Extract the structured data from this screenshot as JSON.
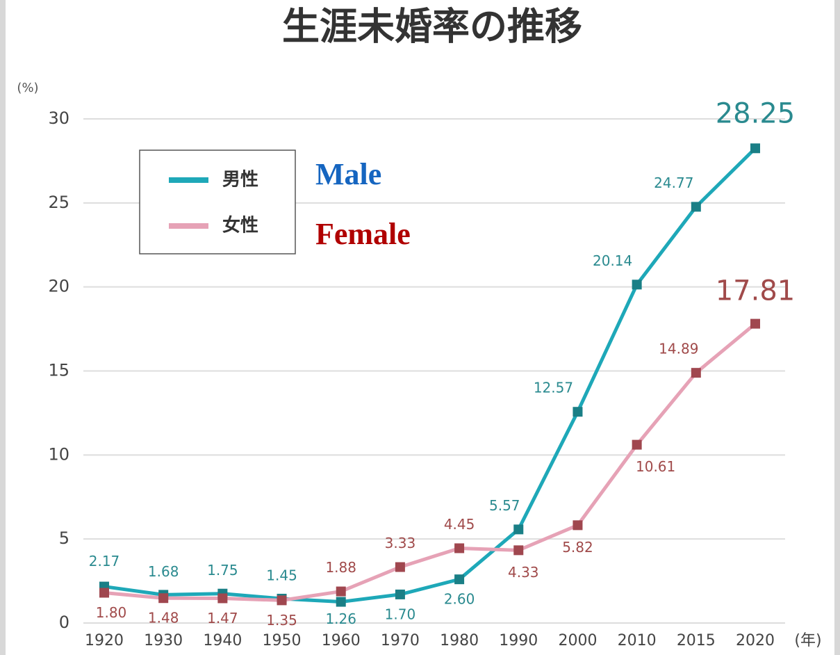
{
  "chart_data": {
    "type": "line",
    "title": "生涯未婚率の推移",
    "y_label": "(%)",
    "x_label": "(年)",
    "categories": [
      "1920",
      "1930",
      "1940",
      "1950",
      "1960",
      "1970",
      "1980",
      "1990",
      "2000",
      "2010",
      "2015",
      "2020"
    ],
    "series": [
      {
        "name": "男性",
        "color": "#1ea8b8",
        "marker_color": "#1a7f86",
        "label_color": "#2a8a8f",
        "values": [
          2.17,
          1.68,
          1.75,
          1.45,
          1.26,
          1.7,
          2.6,
          5.57,
          12.57,
          20.14,
          24.77,
          28.25
        ],
        "value_labels": [
          "2.17",
          "1.68",
          "1.75",
          "1.45",
          "1.26",
          "1.70",
          "2.60",
          "5.57",
          "12.57",
          "20.14",
          "24.77",
          "28.25"
        ]
      },
      {
        "name": "女性",
        "color": "#e6a2b6",
        "marker_color": "#a0474f",
        "label_color": "#a04a4a",
        "values": [
          1.8,
          1.48,
          1.47,
          1.35,
          1.88,
          3.33,
          4.45,
          4.33,
          5.82,
          10.61,
          14.89,
          17.81
        ],
        "value_labels": [
          "1.80",
          "1.48",
          "1.47",
          "1.35",
          "1.88",
          "3.33",
          "4.45",
          "4.33",
          "5.82",
          "10.61",
          "14.89",
          "17.81"
        ]
      }
    ],
    "annotations": [
      {
        "text": "Male",
        "color": "#1565c0"
      },
      {
        "text": "Female",
        "color": "#b00000"
      }
    ],
    "ylim": [
      0,
      30
    ],
    "yticks": [
      0,
      5,
      10,
      15,
      20,
      25,
      30
    ],
    "grid": true,
    "legend": "upper left"
  }
}
